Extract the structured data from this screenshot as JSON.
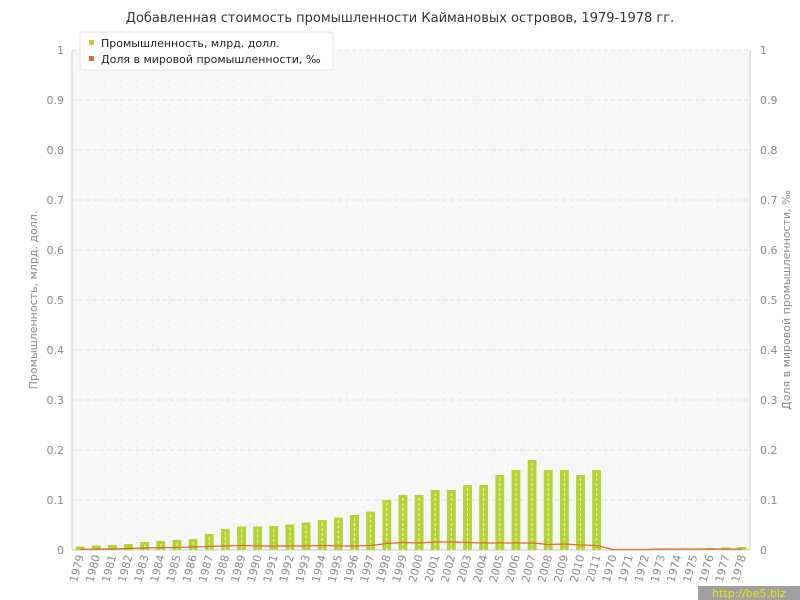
{
  "chart_data": {
    "type": "bar",
    "title": "Добавленная стоимость промышленности Каймановых островов, 1979-1978 гг.",
    "ylabel_left": "Промышленность, млрд. долл.",
    "ylabel_right": "Доля в мировой промышленности, ‰",
    "ylim": [
      0,
      1
    ],
    "y_ticks": [
      "0",
      "0.1",
      "0.2",
      "0.3",
      "0.4",
      "0.5",
      "0.6",
      "0.7",
      "0.8",
      "0.9",
      "1"
    ],
    "categories": [
      "1979",
      "1980",
      "1981",
      "1982",
      "1983",
      "1984",
      "1985",
      "1986",
      "1987",
      "1988",
      "1989",
      "1990",
      "1991",
      "1992",
      "1993",
      "1994",
      "1995",
      "1996",
      "1997",
      "1998",
      "1999",
      "2000",
      "2001",
      "2002",
      "2003",
      "2004",
      "2005",
      "2006",
      "2007",
      "2008",
      "2009",
      "2010",
      "2011",
      "1970",
      "1971",
      "1972",
      "1973",
      "1974",
      "1975",
      "1976",
      "1977",
      "1978"
    ],
    "series": [
      {
        "name": "Промышленность, млрд. долл.",
        "kind": "bar",
        "color": "#b5d334",
        "values": [
          0.007,
          0.009,
          0.01,
          0.012,
          0.016,
          0.018,
          0.02,
          0.022,
          0.032,
          0.042,
          0.047,
          0.047,
          0.048,
          0.051,
          0.055,
          0.06,
          0.065,
          0.07,
          0.077,
          0.1,
          0.11,
          0.11,
          0.12,
          0.12,
          0.13,
          0.13,
          0.15,
          0.16,
          0.18,
          0.16,
          0.16,
          0.15,
          0.16,
          0.001,
          0.001,
          0.001,
          0.002,
          0.003,
          0.003,
          0.004,
          0.005,
          0.006
        ]
      },
      {
        "name": "Доля в мировой промышленности, ‰",
        "kind": "line",
        "color": "#e06a2c",
        "values": [
          0.001,
          0.002,
          0.002,
          0.003,
          0.004,
          0.005,
          0.005,
          0.006,
          0.007,
          0.008,
          0.009,
          0.008,
          0.008,
          0.008,
          0.008,
          0.009,
          0.008,
          0.008,
          0.009,
          0.013,
          0.015,
          0.014,
          0.016,
          0.016,
          0.015,
          0.014,
          0.014,
          0.014,
          0.014,
          0.011,
          0.012,
          0.01,
          0.009,
          0.001,
          0.001,
          0.001,
          0.002,
          0.002,
          0.002,
          0.002,
          0.002,
          0.002
        ]
      }
    ],
    "grid": true,
    "legend_position": "top-left"
  },
  "colors": {
    "plot_background": "#f7f7f7",
    "gridline": "#e0e0e0",
    "axis": "#cccccc"
  },
  "watermark": "http://be5.biz"
}
